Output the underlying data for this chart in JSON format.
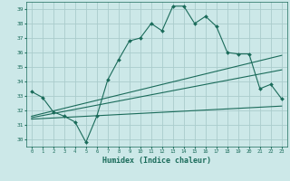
{
  "xlabel": "Humidex (Indice chaleur)",
  "ylabel": "",
  "bg_color": "#cce8e8",
  "grid_color": "#aacccc",
  "line_color": "#1a6b5a",
  "xlim": [
    -0.5,
    23.5
  ],
  "ylim": [
    29.5,
    39.5
  ],
  "xticks": [
    0,
    1,
    2,
    3,
    4,
    5,
    6,
    7,
    8,
    9,
    10,
    11,
    12,
    13,
    14,
    15,
    16,
    17,
    18,
    19,
    20,
    21,
    22,
    23
  ],
  "yticks": [
    30,
    31,
    32,
    33,
    34,
    35,
    36,
    37,
    38,
    39
  ],
  "line1_x": [
    0,
    1,
    2,
    3,
    4,
    5,
    6,
    7,
    8,
    9,
    10,
    11,
    12,
    13,
    14,
    15,
    16,
    17,
    18,
    19,
    20,
    21,
    22,
    23
  ],
  "line1_y": [
    33.3,
    32.9,
    31.9,
    31.6,
    31.2,
    29.8,
    31.6,
    34.1,
    35.5,
    36.8,
    37.0,
    38.0,
    37.5,
    39.2,
    39.2,
    38.0,
    38.5,
    37.8,
    36.0,
    35.9,
    35.9,
    33.5,
    33.8,
    32.8
  ],
  "line2_x": [
    0,
    23
  ],
  "line2_y": [
    31.6,
    35.8
  ],
  "line3_x": [
    0,
    23
  ],
  "line3_y": [
    31.5,
    34.8
  ],
  "line4_x": [
    0,
    23
  ],
  "line4_y": [
    31.4,
    32.3
  ],
  "marker_x": [
    0,
    1,
    2,
    3,
    4,
    5,
    6,
    7,
    8,
    9,
    10,
    11,
    12,
    13,
    14,
    15,
    16,
    17,
    18,
    19,
    20,
    21,
    22,
    23
  ],
  "marker_y": [
    33.3,
    32.9,
    31.9,
    31.6,
    31.2,
    29.8,
    31.6,
    34.1,
    35.5,
    36.8,
    37.0,
    38.0,
    37.5,
    39.2,
    39.2,
    38.0,
    38.5,
    37.8,
    36.0,
    35.9,
    35.9,
    33.5,
    33.8,
    32.8
  ]
}
